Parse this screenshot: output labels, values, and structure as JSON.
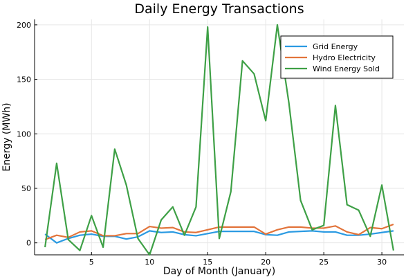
{
  "chart_data": {
    "type": "line",
    "title": "Daily Energy Transactions",
    "xlabel": "Day of Month (January)",
    "ylabel": "Energy (MWh)",
    "xlim": [
      0.1,
      31.9
    ],
    "ylim": [
      -11,
      205
    ],
    "x_ticks": [
      5,
      10,
      15,
      20,
      25,
      30
    ],
    "y_ticks": [
      0,
      50,
      100,
      150,
      200
    ],
    "grid": true,
    "legend_position": "top-right",
    "x": [
      1,
      2,
      3,
      4,
      5,
      6,
      7,
      8,
      9,
      10,
      11,
      12,
      13,
      14,
      15,
      16,
      17,
      18,
      19,
      20,
      21,
      22,
      23,
      24,
      25,
      26,
      27,
      28,
      29,
      30,
      31
    ],
    "series": [
      {
        "name": "Grid Energy",
        "color": "#2a9ae2",
        "values": [
          8,
          0,
          4,
          7,
          8,
          6,
          6,
          3.5,
          5.5,
          11,
          9.5,
          10,
          7.5,
          6.5,
          8.5,
          10.5,
          10.5,
          10.5,
          10.5,
          7.5,
          7,
          10,
          10.5,
          11,
          10,
          10,
          7,
          7,
          8,
          9.5,
          11
        ]
      },
      {
        "name": "Hydro Electricity",
        "color": "#e2743b",
        "values": [
          3,
          7,
          5,
          10,
          11,
          6.5,
          6.5,
          8.5,
          8.5,
          15,
          13.5,
          14,
          10,
          9.5,
          12,
          14.5,
          14.5,
          14.5,
          14.5,
          8,
          12,
          14.5,
          14.5,
          13.5,
          13.5,
          15.5,
          10,
          7.5,
          14,
          13,
          17
        ]
      },
      {
        "name": "Wind Energy Sold",
        "color": "#3ea046",
        "values": [
          -4,
          73,
          3,
          -7,
          25,
          -4,
          86,
          53,
          4,
          -11,
          21,
          33,
          7,
          33,
          198,
          4,
          47,
          167,
          155,
          112,
          200,
          128,
          39,
          12,
          16,
          126,
          35,
          30,
          6,
          53,
          -7
        ]
      }
    ]
  }
}
